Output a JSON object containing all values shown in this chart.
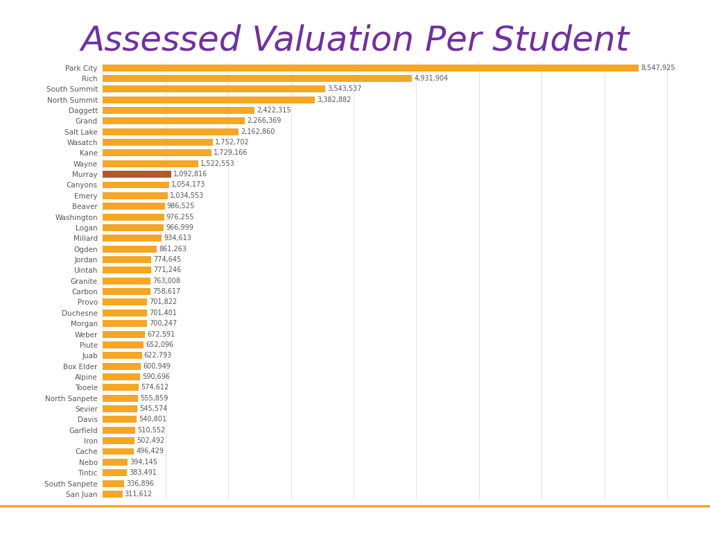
{
  "title": "Assessed Valuation Per Student",
  "title_color": "#7030A0",
  "title_fontsize": 36,
  "bar_color": "#F5A623",
  "murray_color": "#B5572A",
  "background_color": "#FFFFFF",
  "footer_color": "#C0572A",
  "footer_line_color": "#F5A623",
  "categories": [
    "Park City",
    "Rich",
    "South Summit",
    "North Summit",
    "Daggett",
    "Grand",
    "Salt Lake",
    "Wasatch",
    "Kane",
    "Wayne",
    "Murray",
    "Canyons",
    "Emery",
    "Beaver",
    "Washington",
    "Logan",
    "Millard",
    "Ogden",
    "Jordan",
    "Uintah",
    "Granite",
    "Carbon",
    "Provo",
    "Duchesne",
    "Morgan",
    "Weber",
    "Piute",
    "Juab",
    "Box Elder",
    "Alpine",
    "Tooele",
    "North Sanpete",
    "Sevier",
    "Davis",
    "Garfield",
    "Iron",
    "Cache",
    "Nebo",
    "Tintic",
    "South Sanpete",
    "San Juan"
  ],
  "values": [
    8547925,
    4931904,
    3543537,
    3382882,
    2422315,
    2266369,
    2162860,
    1752702,
    1729166,
    1522553,
    1092816,
    1054173,
    1034553,
    986525,
    976255,
    966999,
    934613,
    861263,
    774645,
    771246,
    763008,
    758617,
    701822,
    701401,
    700247,
    672591,
    652096,
    622793,
    600949,
    590696,
    574612,
    555859,
    545574,
    540801,
    510552,
    502492,
    496429,
    394145,
    383491,
    336896,
    311612
  ],
  "label_fontsize": 7.5,
  "value_fontsize": 7.0,
  "grid_color": "#E0E0E0",
  "grid_interval": 1000000
}
